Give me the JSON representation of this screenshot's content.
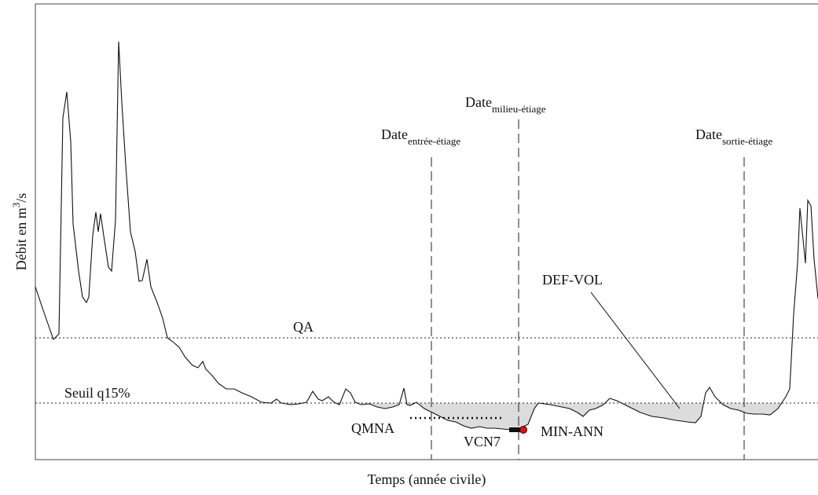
{
  "labels": {
    "y_axis": {
      "main": "Débit en m",
      "sup": "3",
      "tail": "/s"
    },
    "x_axis": "Temps (année civile)",
    "date_entree": {
      "main": "Date",
      "sub": "entrée-étiage"
    },
    "date_milieu": {
      "main": "Date",
      "sub": "milieu-étiage"
    },
    "date_sortie": {
      "main": "Date",
      "sub": "sortie-étiage"
    },
    "qa": "QA",
    "seuil": "Seuil q15%",
    "qmna": "QMNA",
    "vcn7": "VCN7",
    "min_ann": "MIN-ANN",
    "def_vol": "DEF-VOL"
  }
}
